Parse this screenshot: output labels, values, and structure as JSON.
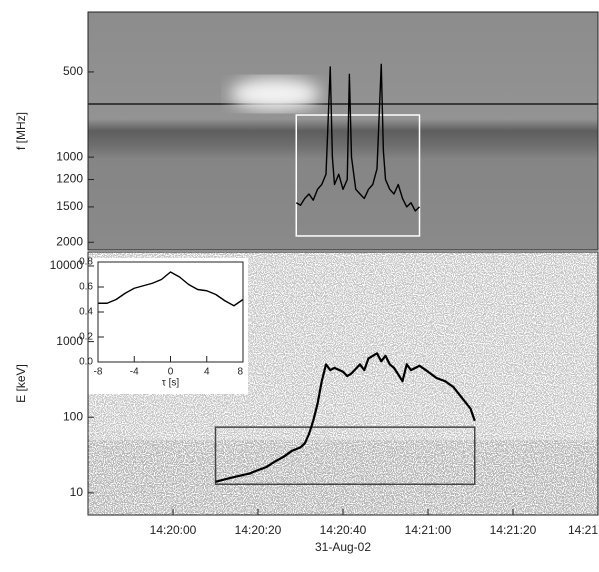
{
  "chart_data": [
    {
      "type": "spectrogram",
      "ylabel": "f [MHz]",
      "ylog": true,
      "xlim": [
        51580,
        51700
      ],
      "ylim": [
        2130,
        307
      ],
      "yticks": [
        500,
        1000,
        1200,
        1500,
        2000
      ],
      "box": {
        "x": [
          51629,
          51658
        ],
        "y": [
          710,
          1900
        ],
        "color": "#ffffff"
      },
      "series": [
        {
          "color": "#000000",
          "x": [
            51629,
            51630,
            51631,
            51632,
            51633,
            51634,
            51635,
            51636,
            51637,
            51637.5,
            51638,
            51639,
            51640,
            51641,
            51641.5,
            51642,
            51643,
            51644,
            51645,
            51646,
            51647,
            51648,
            51649,
            51649.5,
            51650,
            51651,
            51652,
            51653,
            51654,
            51655,
            51656,
            51657,
            51658
          ],
          "values": [
            1450,
            1480,
            1400,
            1350,
            1420,
            1300,
            1250,
            1150,
            480,
            1000,
            1250,
            1150,
            1300,
            1200,
            510,
            1000,
            1300,
            1350,
            1400,
            1300,
            1250,
            1100,
            470,
            950,
            1200,
            1300,
            1350,
            1250,
            1400,
            1500,
            1450,
            1550,
            1500
          ]
        }
      ]
    },
    {
      "type": "line",
      "ylabel": "E [keV]",
      "xlabel": "31-Aug-02",
      "ylog": true,
      "xlim": [
        51580,
        51700
      ],
      "ylim": [
        5.1,
        15300
      ],
      "xticks": [
        {
          "value": 51600,
          "label": "14:20:00"
        },
        {
          "value": 51620,
          "label": "14:20:20"
        },
        {
          "value": 51640,
          "label": "14:20:40"
        },
        {
          "value": 51660,
          "label": "14:21:00"
        },
        {
          "value": 51680,
          "label": "14:21:20"
        },
        {
          "value": 51700,
          "label": "14:21"
        }
      ],
      "yticks": [
        10,
        100,
        1000,
        10000
      ],
      "box": {
        "x": [
          51610,
          51671
        ],
        "y": [
          13,
          74
        ],
        "color": "#444444"
      },
      "series": [
        {
          "color": "#000000",
          "x": [
            51610,
            51612,
            51614,
            51616,
            51618,
            51620,
            51622,
            51624,
            51626,
            51628,
            51630,
            51631,
            51632,
            51633,
            51634,
            51635,
            51636,
            51637,
            51638,
            51640,
            51641,
            51642,
            51644,
            51645,
            51646,
            51648,
            51649,
            51650,
            51651,
            51652,
            51654,
            51655,
            51656,
            51658,
            51660,
            51662,
            51664,
            51666,
            51668,
            51670,
            51671
          ],
          "values": [
            14,
            15,
            16,
            17,
            18,
            20,
            22,
            26,
            30,
            36,
            40,
            45,
            60,
            90,
            150,
            300,
            500,
            420,
            450,
            400,
            350,
            380,
            500,
            420,
            600,
            700,
            550,
            650,
            500,
            450,
            300,
            500,
            420,
            480,
            400,
            330,
            300,
            250,
            180,
            130,
            90
          ]
        }
      ]
    },
    {
      "type": "line",
      "xlabel": "τ [s]",
      "xlim": [
        -8,
        8
      ],
      "ylim": [
        0,
        0.8
      ],
      "xticks": [
        -8,
        -4,
        0,
        4,
        8
      ],
      "yticks": [
        {
          "value": 0,
          "label": "0.0"
        },
        0.2,
        0.4,
        0.6,
        0.8
      ],
      "series": [
        {
          "color": "#000000",
          "x": [
            -8,
            -7,
            -6,
            -5,
            -4,
            -3,
            -2,
            -1,
            0,
            1,
            2,
            3,
            4,
            5,
            6,
            7,
            8
          ],
          "values": [
            0.47,
            0.47,
            0.5,
            0.55,
            0.59,
            0.61,
            0.63,
            0.66,
            0.72,
            0.68,
            0.62,
            0.58,
            0.57,
            0.54,
            0.49,
            0.45,
            0.5
          ]
        }
      ]
    }
  ]
}
